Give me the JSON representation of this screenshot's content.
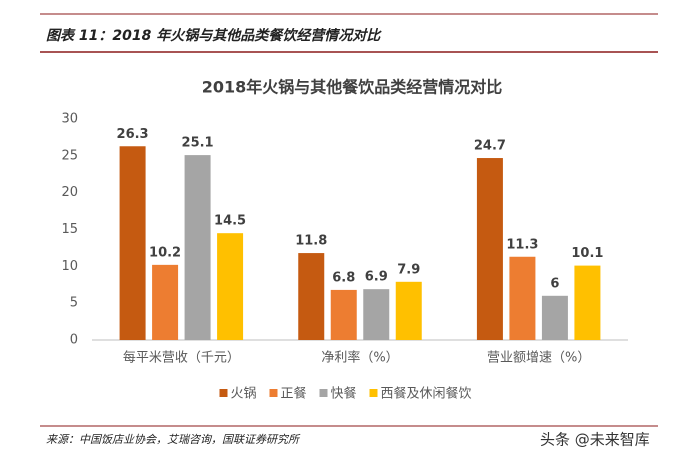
{
  "header": {
    "title": "图表 11：2018 年火锅与其他品类餐饮经营情况对比"
  },
  "chart_data": {
    "type": "bar",
    "title": "2018年火锅与其他餐饮品类经营情况对比",
    "categories": [
      "每平米营收（千元）",
      "净利率（%）",
      "营业额增速（%）"
    ],
    "series": [
      {
        "name": "火锅",
        "color": "#c55a11",
        "values": [
          26.3,
          11.8,
          24.7
        ]
      },
      {
        "name": "正餐",
        "color": "#ed7d31",
        "values": [
          10.2,
          6.8,
          11.3
        ]
      },
      {
        "name": "快餐",
        "color": "#a5a5a5",
        "values": [
          25.1,
          6.9,
          6
        ]
      },
      {
        "name": "西餐及休闲餐饮",
        "color": "#ffc000",
        "values": [
          14.5,
          7.9,
          10.1
        ]
      }
    ],
    "ylim": [
      0,
      30
    ],
    "yticks": [
      0,
      5,
      10,
      15,
      20,
      25,
      30
    ],
    "grid": false,
    "legend": "bottom"
  },
  "footer": {
    "source": "来源：中国饭店业协会，艾瑞咨询，国联证券研究所",
    "watermark": "头条 @未来智库"
  }
}
